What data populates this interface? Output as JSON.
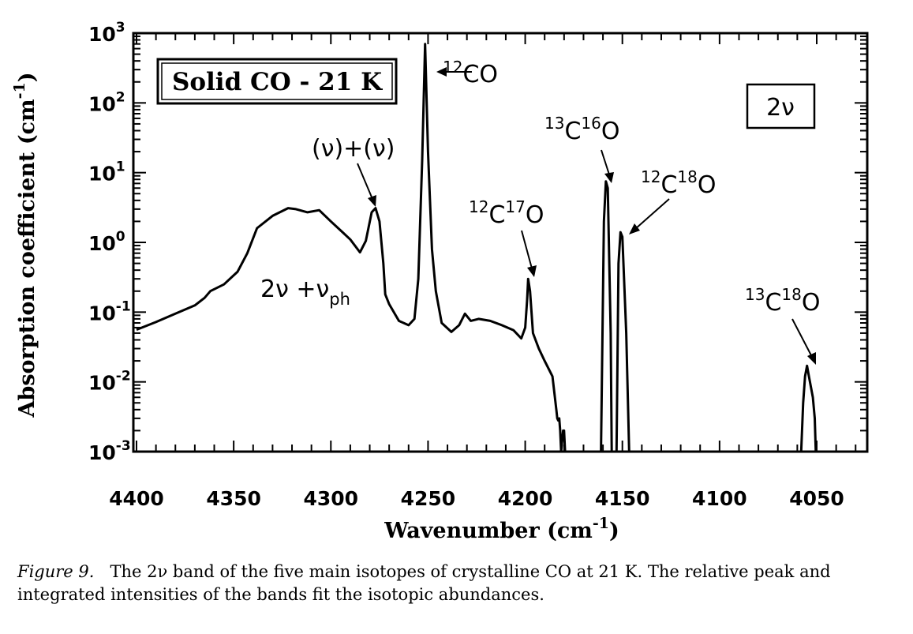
{
  "chart_data": {
    "type": "line",
    "y_scale": "log",
    "x_reversed": true,
    "xlim": [
      4400,
      4028
    ],
    "ylim": [
      0.001,
      1000
    ],
    "xlabel": "Wavenumber (cm-1)",
    "ylabel": "Absorption coefficient (cm-1)",
    "x_ticks": [
      "4400",
      "4350",
      "4300",
      "4250",
      "4200",
      "4150",
      "4100",
      "4050"
    ],
    "y_ticks": [
      {
        "value": 1000,
        "base": "10",
        "exp": "3"
      },
      {
        "value": 100,
        "base": "10",
        "exp": "2"
      },
      {
        "value": 10,
        "base": "10",
        "exp": "1"
      },
      {
        "value": 1,
        "base": "10",
        "exp": "0"
      },
      {
        "value": 0.1,
        "base": "10",
        "exp": "-1"
      },
      {
        "value": 0.01,
        "base": "10",
        "exp": "-2"
      },
      {
        "value": 0.001,
        "base": "10",
        "exp": "-3"
      }
    ],
    "series": [
      {
        "points": [
          [
            4400,
            0.056
          ],
          [
            4390,
            0.072
          ],
          [
            4380,
            0.095
          ],
          [
            4370,
            0.125
          ],
          [
            4365,
            0.16
          ],
          [
            4362,
            0.2
          ],
          [
            4355,
            0.25
          ],
          [
            4348,
            0.38
          ],
          [
            4343,
            0.7
          ],
          [
            4338,
            1.6
          ],
          [
            4330,
            2.4
          ],
          [
            4322,
            3.1
          ],
          [
            4318,
            3.0
          ],
          [
            4312,
            2.7
          ],
          [
            4306,
            2.9
          ],
          [
            4300,
            2.0
          ],
          [
            4294,
            1.4
          ],
          [
            4290,
            1.1
          ],
          [
            4285,
            0.72
          ],
          [
            4282,
            1.05
          ],
          [
            4279,
            2.7
          ],
          [
            4277,
            3.1
          ],
          [
            4275,
            2.0
          ],
          [
            4273,
            0.5
          ],
          [
            4272,
            0.18
          ],
          [
            4270,
            0.13
          ],
          [
            4265,
            0.075
          ],
          [
            4260,
            0.065
          ],
          [
            4257,
            0.08
          ],
          [
            4255,
            0.3
          ],
          [
            4253,
            15
          ],
          [
            4251.5,
            700
          ],
          [
            4250,
            20
          ],
          [
            4248,
            0.8
          ],
          [
            4246,
            0.2
          ],
          [
            4243,
            0.07
          ],
          [
            4238,
            0.052
          ],
          [
            4234,
            0.065
          ],
          [
            4231,
            0.095
          ],
          [
            4228,
            0.075
          ],
          [
            4224,
            0.08
          ],
          [
            4218,
            0.075
          ],
          [
            4212,
            0.065
          ],
          [
            4206,
            0.055
          ],
          [
            4202,
            0.042
          ],
          [
            4200,
            0.06
          ],
          [
            4199,
            0.15
          ],
          [
            4198.5,
            0.3
          ],
          [
            4197.5,
            0.2
          ],
          [
            4196,
            0.05
          ],
          [
            4193,
            0.03
          ],
          [
            4190,
            0.02
          ],
          [
            4186,
            0.012
          ],
          [
            4184,
            0.004
          ],
          [
            4183.5,
            0.003
          ],
          [
            4183,
            0.0028
          ],
          [
            4182.5,
            0.003
          ],
          [
            4182,
            0.002
          ],
          [
            4181.5,
            0.001
          ],
          [
            4180.5,
            0.002
          ],
          [
            4180,
            0.002
          ],
          [
            4179.5,
            0.001
          ],
          [
            4161,
            0.001
          ],
          [
            4159.5,
            2
          ],
          [
            4158.5,
            7.5
          ],
          [
            4157.5,
            6
          ],
          [
            4156,
            0.05
          ],
          [
            4155.5,
            0.001
          ],
          [
            4153,
            0.001
          ],
          [
            4152,
            0.5
          ],
          [
            4151,
            1.4
          ],
          [
            4150,
            1.2
          ],
          [
            4148,
            0.05
          ],
          [
            4146.5,
            0.001
          ],
          [
            4058,
            0.001
          ],
          [
            4057,
            0.005
          ],
          [
            4056,
            0.012
          ],
          [
            4055,
            0.017
          ],
          [
            4054,
            0.012
          ],
          [
            4052,
            0.006
          ],
          [
            4051,
            0.003
          ],
          [
            4050.5,
            0.001
          ]
        ]
      }
    ]
  },
  "annotations": {
    "box_title": "Solid CO - 21 K",
    "band_box": "2ν",
    "nu_plus_nu": "(ν)+(ν)",
    "co12": {
      "sup": "12",
      "text": "CO"
    },
    "c13o16": {
      "sup1": "13",
      "c": "C",
      "sup2": "16",
      "o": "O"
    },
    "c12o18": {
      "sup1": "12",
      "c": "C",
      "sup2": "18",
      "o": "O"
    },
    "c12o17": {
      "sup1": "12",
      "c": "C",
      "sup2": "17",
      "o": "O"
    },
    "c13o18": {
      "sup1": "13",
      "c": "C",
      "sup2": "18",
      "o": "O"
    },
    "phonon": {
      "main": "2ν +ν",
      "sub": "ph"
    }
  },
  "axis": {
    "xlabel_main": "Wavenumber (cm",
    "xlabel_sup": "-1",
    "xlabel_end": ")",
    "ylabel_main": "Absorption coefficient (cm",
    "ylabel_sup": "-1",
    "ylabel_end": ")"
  },
  "caption": {
    "label": "Figure 9.",
    "text": "The 2ν band of the five main isotopes of crystalline CO at 21 K. The relative peak and integrated intensities of the bands fit the isotopic abundances."
  }
}
